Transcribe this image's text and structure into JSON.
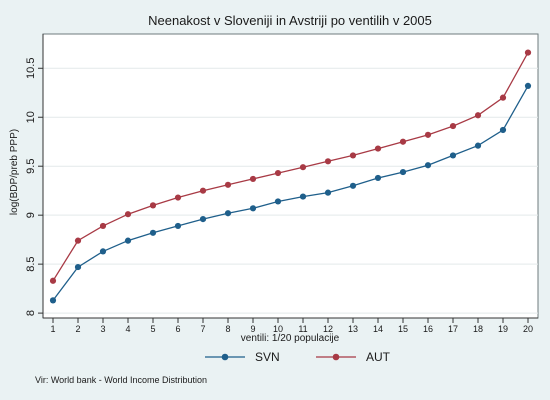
{
  "chart_data": {
    "type": "line",
    "title": "Neenakost v Sloveniji in Avstriji po ventilih v 2005",
    "xlabel": "ventili: 1/20 populacije",
    "ylabel": "log(BDP/preb PPP)",
    "x": [
      1,
      2,
      3,
      4,
      5,
      6,
      7,
      8,
      9,
      10,
      11,
      12,
      13,
      14,
      15,
      16,
      17,
      18,
      19,
      20
    ],
    "x_ticks": [
      "1",
      "2",
      "3",
      "4",
      "5",
      "6",
      "7",
      "8",
      "9",
      "10",
      "11",
      "12",
      "13",
      "14",
      "15",
      "16",
      "17",
      "18",
      "19",
      "20"
    ],
    "y_ticks": [
      "8",
      "8.5",
      "9",
      "9.5",
      "10",
      "10.5"
    ],
    "xlim": [
      0.6,
      20.4
    ],
    "ylim": [
      7.95,
      10.85
    ],
    "grid": true,
    "legend_position": "bottom",
    "series": [
      {
        "name": "SVN",
        "color": "#1f5f8b",
        "values": [
          8.13,
          8.47,
          8.63,
          8.74,
          8.82,
          8.89,
          8.96,
          9.02,
          9.07,
          9.14,
          9.19,
          9.23,
          9.3,
          9.38,
          9.44,
          9.51,
          9.61,
          9.71,
          9.87,
          10.32
        ]
      },
      {
        "name": "AUT",
        "color": "#a83a45",
        "values": [
          8.33,
          8.74,
          8.89,
          9.01,
          9.1,
          9.18,
          9.25,
          9.31,
          9.37,
          9.43,
          9.49,
          9.55,
          9.61,
          9.68,
          9.75,
          9.82,
          9.91,
          10.02,
          10.2,
          10.66
        ]
      }
    ],
    "source": "Vir: World bank - World Income Distribution"
  }
}
